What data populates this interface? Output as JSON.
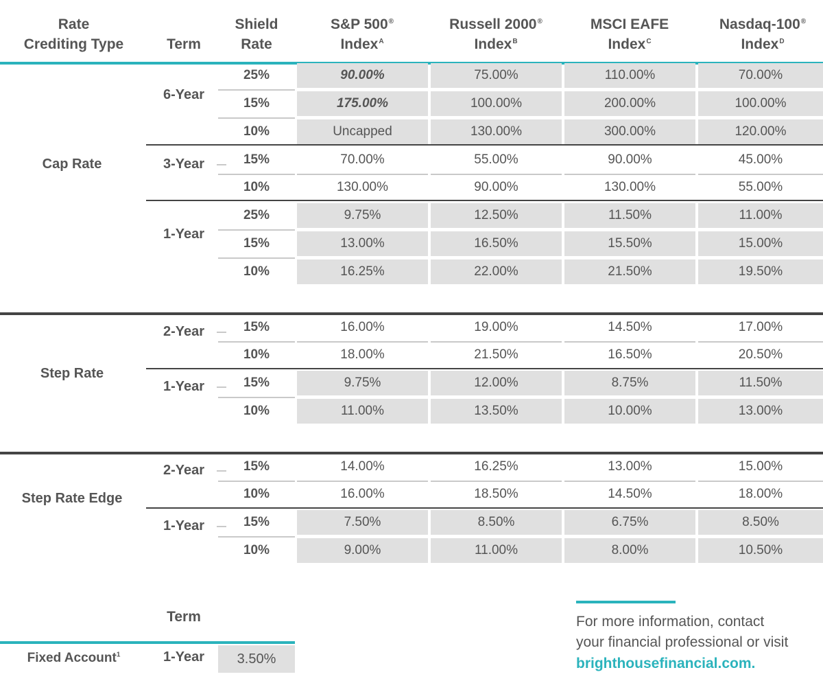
{
  "headers": {
    "rate_crediting_type": [
      "Rate",
      "Crediting Type"
    ],
    "term": "Term",
    "shield_rate": [
      "Shield",
      "Rate"
    ],
    "indices": [
      {
        "name": "S&P 500",
        "mark": "®",
        "line2": "Index",
        "note": "A"
      },
      {
        "name": "Russell 2000",
        "mark": "®",
        "line2": "Index",
        "note": "B"
      },
      {
        "name": "MSCI EAFE",
        "mark": "",
        "line2": "Index",
        "note": "C"
      },
      {
        "name": "Nasdaq-100",
        "mark": "®",
        "line2": "Index",
        "note": "D"
      }
    ]
  },
  "groups": [
    {
      "label": "Cap Rate",
      "terms": [
        {
          "label": "6-Year",
          "rows": [
            {
              "shield": "25%",
              "values": [
                "90.00%",
                "75.00%",
                "110.00%",
                "70.00%"
              ],
              "emphasis_first": true
            },
            {
              "shield": "15%",
              "values": [
                "175.00%",
                "100.00%",
                "200.00%",
                "100.00%"
              ],
              "emphasis_first": true
            },
            {
              "shield": "10%",
              "values": [
                "Uncapped",
                "130.00%",
                "300.00%",
                "120.00%"
              ],
              "emphasis_first": false
            }
          ]
        },
        {
          "label": "3-Year",
          "rows": [
            {
              "shield": "15%",
              "values": [
                "70.00%",
                "55.00%",
                "90.00%",
                "45.00%"
              ],
              "emphasis_first": false
            },
            {
              "shield": "10%",
              "values": [
                "130.00%",
                "90.00%",
                "130.00%",
                "55.00%"
              ],
              "emphasis_first": false
            }
          ]
        },
        {
          "label": "1-Year",
          "rows": [
            {
              "shield": "25%",
              "values": [
                "9.75%",
                "12.50%",
                "11.50%",
                "11.00%"
              ],
              "emphasis_first": false
            },
            {
              "shield": "15%",
              "values": [
                "13.00%",
                "16.50%",
                "15.50%",
                "15.00%"
              ],
              "emphasis_first": false
            },
            {
              "shield": "10%",
              "values": [
                "16.25%",
                "22.00%",
                "21.50%",
                "19.50%"
              ],
              "emphasis_first": false
            }
          ]
        }
      ]
    },
    {
      "label": "Step Rate",
      "terms": [
        {
          "label": "2-Year",
          "rows": [
            {
              "shield": "15%",
              "values": [
                "16.00%",
                "19.00%",
                "14.50%",
                "17.00%"
              ],
              "emphasis_first": false
            },
            {
              "shield": "10%",
              "values": [
                "18.00%",
                "21.50%",
                "16.50%",
                "20.50%"
              ],
              "emphasis_first": false
            }
          ]
        },
        {
          "label": "1-Year",
          "rows": [
            {
              "shield": "15%",
              "values": [
                "9.75%",
                "12.00%",
                "8.75%",
                "11.50%"
              ],
              "emphasis_first": false
            },
            {
              "shield": "10%",
              "values": [
                "11.00%",
                "13.50%",
                "10.00%",
                "13.00%"
              ],
              "emphasis_first": false
            }
          ]
        }
      ]
    },
    {
      "label": "Step Rate Edge",
      "terms": [
        {
          "label": "2-Year",
          "rows": [
            {
              "shield": "15%",
              "values": [
                "14.00%",
                "16.25%",
                "13.00%",
                "15.00%"
              ],
              "emphasis_first": false
            },
            {
              "shield": "10%",
              "values": [
                "16.00%",
                "18.50%",
                "14.50%",
                "18.00%"
              ],
              "emphasis_first": false
            }
          ]
        },
        {
          "label": "1-Year",
          "rows": [
            {
              "shield": "15%",
              "values": [
                "7.50%",
                "8.50%",
                "6.75%",
                "8.50%"
              ],
              "emphasis_first": false
            },
            {
              "shield": "10%",
              "values": [
                "9.00%",
                "11.00%",
                "8.00%",
                "10.50%"
              ],
              "emphasis_first": false
            }
          ]
        }
      ]
    }
  ],
  "fixed_account": {
    "term_header": "Term",
    "label": "Fixed Account",
    "note": "1",
    "term": "1-Year",
    "rate": "3.50%"
  },
  "contact": {
    "line1": "For more information, contact",
    "line2": "your financial professional or visit",
    "link": "brighthousefinancial.com."
  },
  "colors": {
    "accent": "#2bb3bc",
    "text": "#555555",
    "cell_shade": "#e0e0e0",
    "rule_dark": "#444444"
  }
}
